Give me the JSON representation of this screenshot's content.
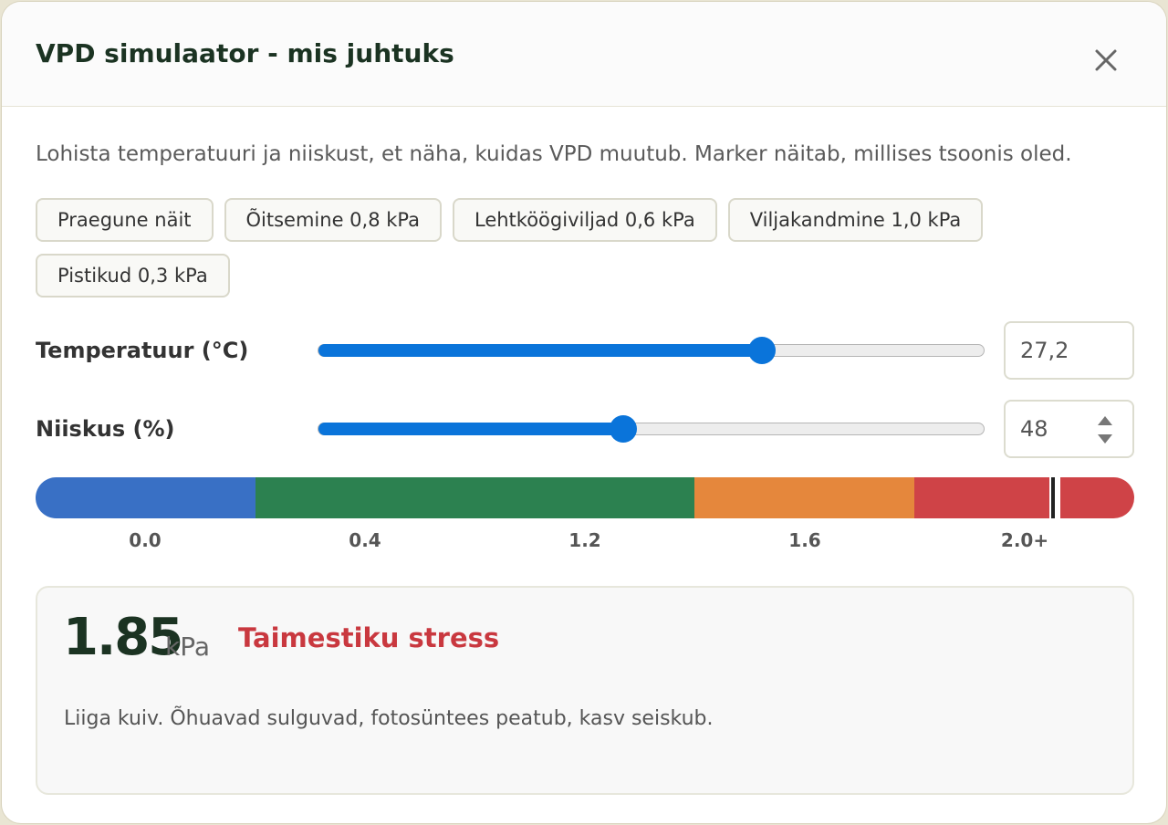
{
  "header": {
    "title": "VPD simulaator - mis juhtuks"
  },
  "description": "Lohista temperatuuri ja niiskust, et näha, kuidas VPD muutub. Marker näitab, millises tsoonis oled.",
  "presets": [
    "Praegune näit",
    "Õitsemine 0,8 kPa",
    "Lehtköögiviljad 0,6 kPa",
    "Viljakandmine 1,0 kPa",
    "Pistikud 0,3 kPa"
  ],
  "controls": [
    {
      "label": "Temperatuur (°C)",
      "value": "27,2"
    },
    {
      "label": "Niiskus (%)",
      "value": "48"
    }
  ],
  "scale": {
    "labels": [
      "0.0",
      "0.4",
      "1.2",
      "1.6",
      "2.0+"
    ]
  },
  "result": {
    "value": "1.85",
    "unit": "kPa",
    "status": "Taimestiku stress",
    "message": "Liiga kuiv. Õhuavad sulguvad, fotosüntees peatub, kasv seiskub."
  }
}
